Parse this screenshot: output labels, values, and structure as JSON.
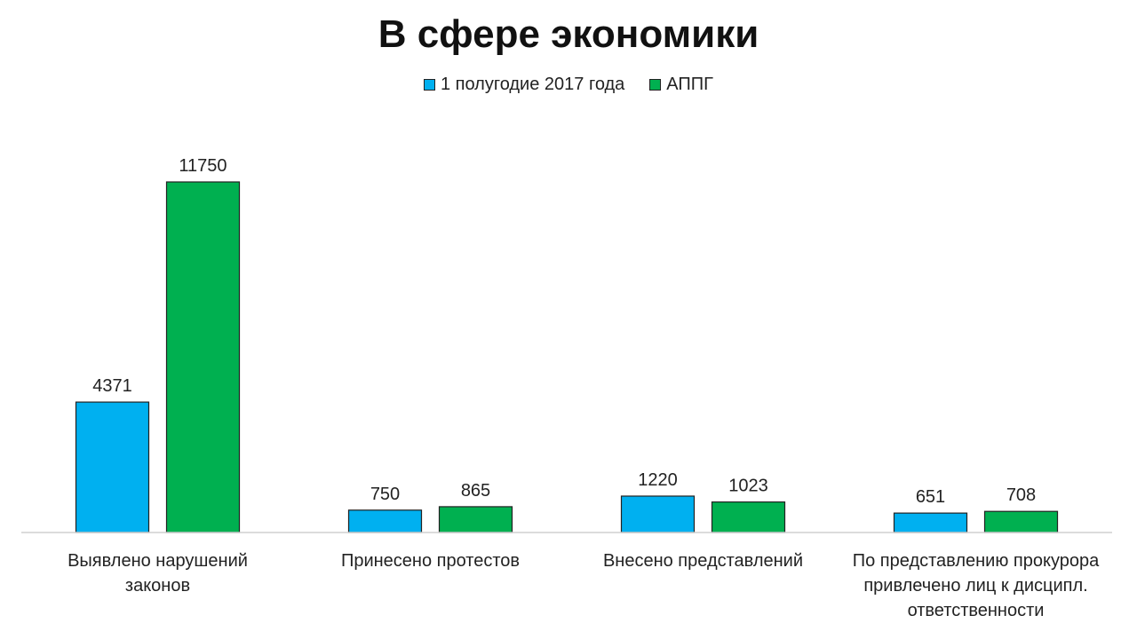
{
  "chart_data": {
    "type": "bar",
    "title": "В сфере экономики",
    "categories": [
      [
        "Выявлено нарушений",
        "законов"
      ],
      [
        "Принесено протестов"
      ],
      [
        "Внесено представлений"
      ],
      [
        "По представлению прокурора",
        "привлечено лиц к дисципл.",
        "ответственности"
      ]
    ],
    "series": [
      {
        "name": "1 полугодие 2017 года",
        "color": "#00B0F0",
        "values": [
          4371,
          750,
          1220,
          651
        ]
      },
      {
        "name": "АППГ",
        "color": "#00B050",
        "values": [
          11750,
          865,
          1023,
          708
        ]
      }
    ],
    "ylim": [
      0,
      11750
    ],
    "grid": false,
    "legend_position": "top"
  }
}
